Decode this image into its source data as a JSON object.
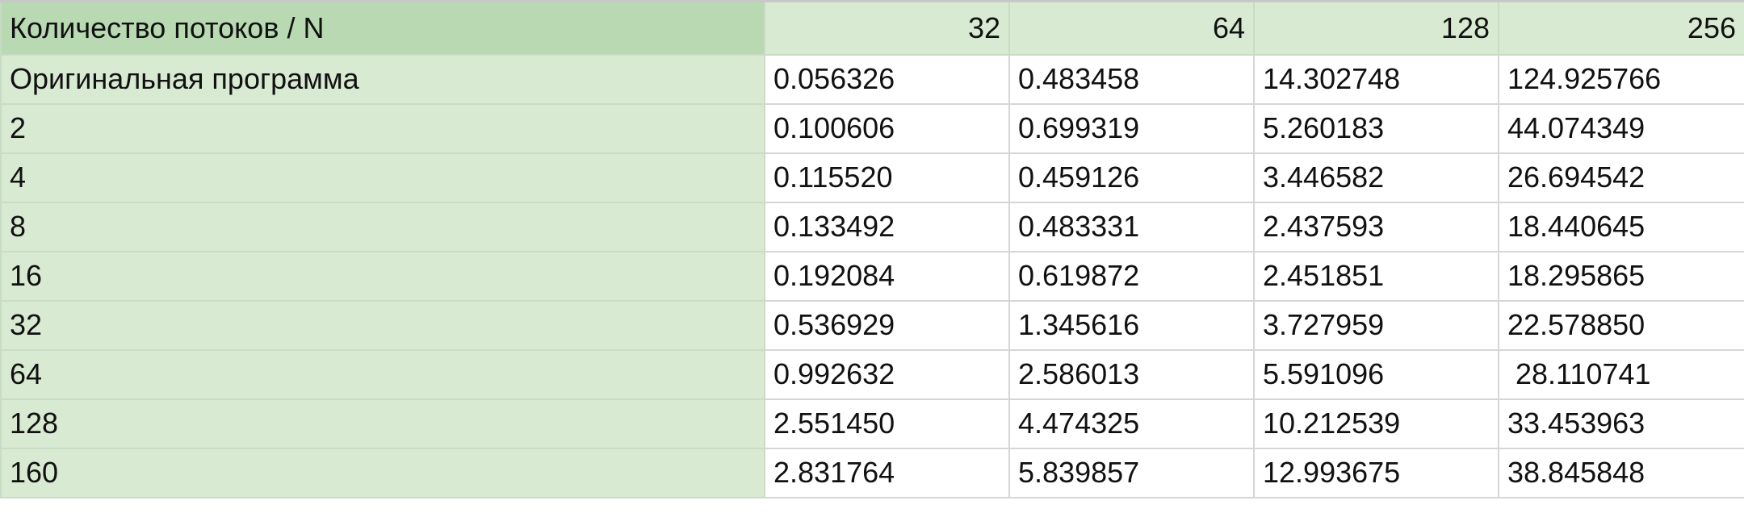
{
  "table": {
    "corner_label": "Количество потоков / N",
    "columns": [
      "32",
      "64",
      "128",
      "256"
    ],
    "rows": [
      {
        "label": "Оригинальная программа",
        "values": [
          "0.056326",
          "0.483458",
          "14.302748",
          "124.925766"
        ]
      },
      {
        "label": "2",
        "values": [
          "0.100606",
          "0.699319",
          "5.260183",
          "44.074349"
        ]
      },
      {
        "label": "4",
        "values": [
          "0.115520",
          "0.459126",
          "3.446582",
          "26.694542"
        ]
      },
      {
        "label": "8",
        "values": [
          "0.133492",
          "0.483331",
          "2.437593",
          "18.440645"
        ]
      },
      {
        "label": "16",
        "values": [
          "0.192084",
          "0.619872",
          "2.451851",
          "18.295865"
        ]
      },
      {
        "label": "32",
        "values": [
          "0.536929",
          "1.345616",
          "3.727959",
          "22.578850"
        ]
      },
      {
        "label": "64",
        "values": [
          "0.992632",
          "2.586013",
          "5.591096",
          " 28.110741"
        ]
      },
      {
        "label": "128",
        "values": [
          "2.551450",
          "4.474325",
          "10.212539",
          "33.453963"
        ]
      },
      {
        "label": "160",
        "values": [
          "2.831764",
          "5.839857",
          "12.993675",
          "38.845848"
        ]
      }
    ]
  },
  "colors": {
    "corner_header_bg": "#b8d9b2",
    "header_bg": "#d9ead3",
    "label_column_bg": "#d9ead3",
    "cell_bg": "#ffffff",
    "grid_line": "#d6d6d6"
  }
}
